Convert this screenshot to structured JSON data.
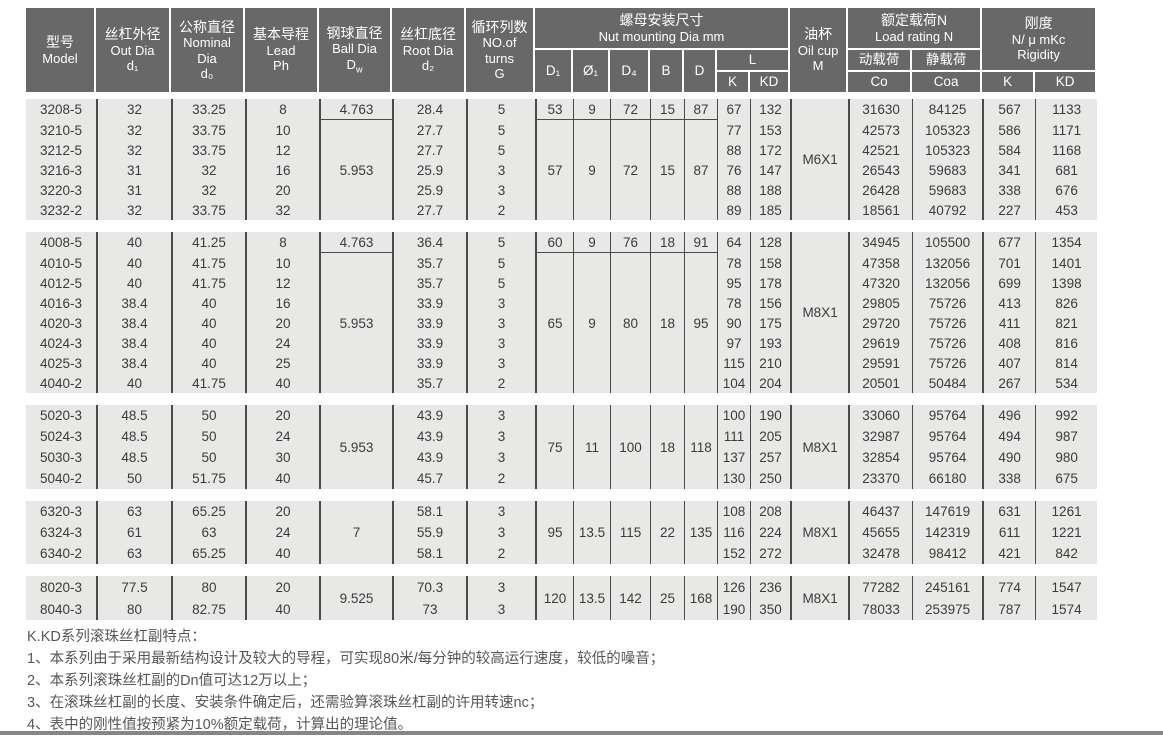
{
  "colors": {
    "header_bg": "#696868",
    "header_text": "#ffffff",
    "row_bg": "#e8e8e6",
    "model_col_bg": "#efa31d",
    "grid_line": "#4b4b4b",
    "cell_text": "#3b3b3b",
    "note_text": "#575757",
    "footer_bar": "#85868a"
  },
  "header": {
    "model": [
      "型号",
      "Model"
    ],
    "out_dia": [
      "丝杠外径",
      "Out Dia",
      "d₁"
    ],
    "nominal_dia": [
      "公称直径",
      "Nominal",
      "Dia",
      "d₀"
    ],
    "lead": [
      "基本导程",
      "Lead",
      "Ph"
    ],
    "ball_dia": [
      "钢球直径",
      "Ball Dia"
    ],
    "ball_sym": {
      "base": "D",
      "sub": "w"
    },
    "root_dia": [
      "丝杠底径",
      "Root Dia",
      "d₂"
    ],
    "turns": [
      "循环列数",
      "NO.of",
      "turns",
      "G"
    ],
    "nut_mounting": [
      "螺母安装尺寸",
      "Nut mounting Dia mm"
    ],
    "nut_cols": [
      "D₁",
      "Ø₁",
      "D₄",
      "B",
      "D"
    ],
    "l_label": "L",
    "l_sub": [
      "K",
      "KD"
    ],
    "oil_cup": [
      "油杯",
      "Oil cup",
      "M"
    ],
    "load_rating": [
      "额定载荷N",
      "Load rating N"
    ],
    "load_sub_cn": [
      "动载荷",
      "静载荷"
    ],
    "load_sub": [
      "Co",
      "Coa"
    ],
    "rigidity": [
      "刚度",
      "N/ μ mKc",
      "Rigidity"
    ],
    "rigidity_sub": [
      "K",
      "KD"
    ]
  },
  "groups": [
    {
      "oil": "M6X1",
      "ball_segments": [
        {
          "value": "4.763",
          "rows": 1
        },
        {
          "value": "5.953",
          "rows": 5
        }
      ],
      "mount_segments": [
        {
          "values": [
            "53",
            "9",
            "72",
            "15",
            "87"
          ],
          "rows": 1
        },
        {
          "values": [
            "57",
            "9",
            "72",
            "15",
            "87"
          ],
          "rows": 5
        }
      ],
      "rows": [
        [
          "3208-5",
          "32",
          "33.25",
          "8",
          "28.4",
          "5",
          "67",
          "132",
          "31630",
          "84125",
          "567",
          "1133"
        ],
        [
          "3210-5",
          "32",
          "33.75",
          "10",
          "27.7",
          "5",
          "77",
          "153",
          "42573",
          "105323",
          "586",
          "1171"
        ],
        [
          "3212-5",
          "32",
          "33.75",
          "12",
          "27.7",
          "5",
          "88",
          "172",
          "42521",
          "105323",
          "584",
          "1168"
        ],
        [
          "3216-3",
          "31",
          "32",
          "16",
          "25.9",
          "3",
          "76",
          "147",
          "26543",
          "59683",
          "341",
          "681"
        ],
        [
          "3220-3",
          "31",
          "32",
          "20",
          "25.9",
          "3",
          "88",
          "188",
          "26428",
          "59683",
          "338",
          "676"
        ],
        [
          "3232-2",
          "32",
          "33.75",
          "32",
          "27.7",
          "2",
          "89",
          "185",
          "18561",
          "40792",
          "227",
          "453"
        ]
      ]
    },
    {
      "oil": "M8X1",
      "ball_segments": [
        {
          "value": "4.763",
          "rows": 1
        },
        {
          "value": "5.953",
          "rows": 7
        }
      ],
      "mount_segments": [
        {
          "values": [
            "60",
            "9",
            "76",
            "18",
            "91"
          ],
          "rows": 1
        },
        {
          "values": [
            "65",
            "9",
            "80",
            "18",
            "95"
          ],
          "rows": 7
        }
      ],
      "rows": [
        [
          "4008-5",
          "40",
          "41.25",
          "8",
          "36.4",
          "5",
          "64",
          "128",
          "34945",
          "105500",
          "677",
          "1354"
        ],
        [
          "4010-5",
          "40",
          "41.75",
          "10",
          "35.7",
          "5",
          "78",
          "158",
          "47358",
          "132056",
          "701",
          "1401"
        ],
        [
          "4012-5",
          "40",
          "41.75",
          "12",
          "35.7",
          "5",
          "95",
          "178",
          "47320",
          "132056",
          "699",
          "1398"
        ],
        [
          "4016-3",
          "38.4",
          "40",
          "16",
          "33.9",
          "3",
          "78",
          "156",
          "29805",
          "75726",
          "413",
          "826"
        ],
        [
          "4020-3",
          "38.4",
          "40",
          "20",
          "33.9",
          "3",
          "90",
          "175",
          "29720",
          "75726",
          "411",
          "821"
        ],
        [
          "4024-3",
          "38.4",
          "40",
          "24",
          "33.9",
          "3",
          "97",
          "193",
          "29619",
          "75726",
          "408",
          "816"
        ],
        [
          "4025-3",
          "38.4",
          "40",
          "25",
          "33.9",
          "3",
          "115",
          "210",
          "29591",
          "75726",
          "407",
          "814"
        ],
        [
          "4040-2",
          "40",
          "41.75",
          "40",
          "35.7",
          "2",
          "104",
          "204",
          "20501",
          "50484",
          "267",
          "534"
        ]
      ]
    },
    {
      "oil": "M8X1",
      "ball_segments": [
        {
          "value": "5.953",
          "rows": 4
        }
      ],
      "mount_segments": [
        {
          "values": [
            "75",
            "11",
            "100",
            "18",
            "118"
          ],
          "rows": 4
        }
      ],
      "rows": [
        [
          "5020-3",
          "48.5",
          "50",
          "20",
          "43.9",
          "3",
          "100",
          "190",
          "33060",
          "95764",
          "496",
          "992"
        ],
        [
          "5024-3",
          "48.5",
          "50",
          "24",
          "43.9",
          "3",
          "111",
          "205",
          "32987",
          "95764",
          "494",
          "987"
        ],
        [
          "5030-3",
          "48.5",
          "50",
          "30",
          "43.9",
          "3",
          "137",
          "257",
          "32854",
          "95764",
          "490",
          "980"
        ],
        [
          "5040-2",
          "50",
          "51.75",
          "40",
          "45.7",
          "2",
          "130",
          "250",
          "23370",
          "66180",
          "338",
          "675"
        ]
      ]
    },
    {
      "oil": "M8X1",
      "ball_segments": [
        {
          "value": "7",
          "rows": 3
        }
      ],
      "mount_segments": [
        {
          "values": [
            "95",
            "13.5",
            "115",
            "22",
            "135"
          ],
          "rows": 3
        }
      ],
      "rows": [
        [
          "6320-3",
          "63",
          "65.25",
          "20",
          "58.1",
          "3",
          "108",
          "208",
          "46437",
          "147619",
          "631",
          "1261"
        ],
        [
          "6324-3",
          "61",
          "63",
          "24",
          "55.9",
          "3",
          "116",
          "224",
          "45655",
          "142319",
          "611",
          "1221"
        ],
        [
          "6340-2",
          "63",
          "65.25",
          "40",
          "58.1",
          "2",
          "152",
          "272",
          "32478",
          "98412",
          "421",
          "842"
        ]
      ]
    },
    {
      "oil": "M8X1",
      "ball_segments": [
        {
          "value": "9.525",
          "rows": 2
        }
      ],
      "mount_segments": [
        {
          "values": [
            "120",
            "13.5",
            "142",
            "25",
            "168"
          ],
          "rows": 2
        }
      ],
      "rows": [
        [
          "8020-3",
          "77.5",
          "80",
          "20",
          "70.3",
          "3",
          "126",
          "236",
          "77282",
          "245161",
          "774",
          "1547"
        ],
        [
          "8040-3",
          "80",
          "82.75",
          "40",
          "73",
          "3",
          "190",
          "350",
          "78033",
          "253975",
          "787",
          "1574"
        ]
      ]
    }
  ],
  "notes": {
    "title": "K.KD系列滚珠丝杠副特点：",
    "items": [
      "1、本系列由于采用最新结构设计及较大的导程，可实现80米/每分钟的较高运行速度，较低的噪音；",
      "2、本系列滚珠丝杠副的Dn值可达12万以上；",
      "3、在滚珠丝杠副的长度、安装条件确定后，还需验算滚珠丝杠副的许用转速nc；",
      "4、表中的刚性值按预紧为10%额定载荷，计算出的理论值。"
    ]
  }
}
